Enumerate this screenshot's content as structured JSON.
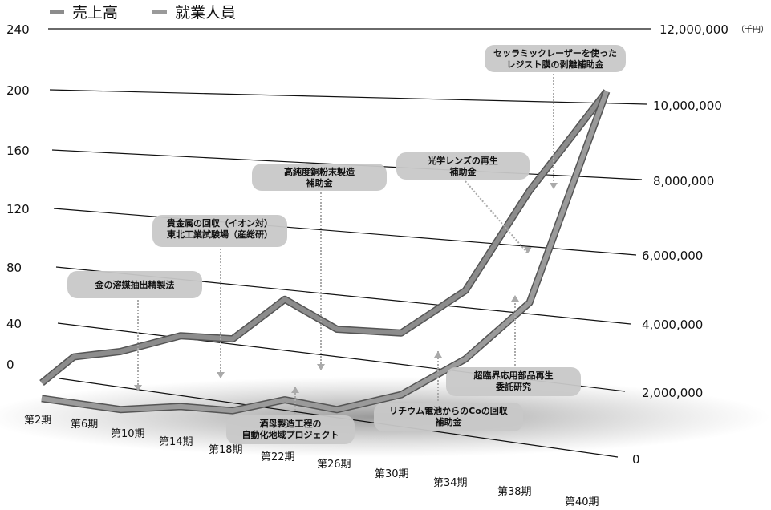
{
  "chart_data": {
    "type": "line",
    "legend": [
      "売上高",
      "就業人員"
    ],
    "categories": [
      "第2期",
      "第6期",
      "第10期",
      "第14期",
      "第18期",
      "第22期",
      "第26期",
      "第30期",
      "第34期",
      "第38期",
      "第40期"
    ],
    "series": [
      {
        "name": "売上高",
        "axis": "right",
        "values": [
          100000,
          1200000,
          1600000,
          2400000,
          2500000,
          4000000,
          3200000,
          3300000,
          4800000,
          7800000,
          10000000
        ],
        "color": "#8c8c8c"
      },
      {
        "name": "就業人員",
        "axis": "left",
        "values": [
          0,
          0,
          0,
          8,
          10,
          22,
          20,
          35,
          62,
          100,
          200
        ],
        "color": "#9a9a9a"
      }
    ],
    "y_left": {
      "range": [
        0,
        240
      ],
      "ticks": [
        "240",
        "200",
        "160",
        "120",
        "80",
        "40",
        "0"
      ]
    },
    "y_right": {
      "range": [
        0,
        12000000
      ],
      "ticks": [
        "12,000,000",
        "10,000,000",
        "8,000,000",
        "6,000,000",
        "4,000,000",
        "2,000,000",
        "0"
      ],
      "unit": "（千円）"
    },
    "annotations": [
      {
        "text": [
          "金の溶媒抽出精製法"
        ],
        "category": "第10期"
      },
      {
        "text": [
          "貴金属の回収（イオン対）",
          "東北工業試験場（産総研）"
        ],
        "category": "第18期"
      },
      {
        "text": [
          "高純度銅粉末製造",
          "補助金"
        ],
        "category": "第26期"
      },
      {
        "text": [
          "光学レンズの再生",
          "補助金"
        ],
        "category": "第38期"
      },
      {
        "text": [
          "セッラミックレーザーを使った",
          "レジスト膜の剥離補助金"
        ],
        "category": "第40期"
      },
      {
        "text": [
          "酒母製造工程の",
          "自動化地域プロジェクト"
        ],
        "category": "第22期"
      },
      {
        "text": [
          "リチウム電池からのCoの回収",
          "補助金"
        ],
        "category": "第34期"
      },
      {
        "text": [
          "超臨界応用部品再生",
          "委託研究"
        ],
        "category": "第38期"
      }
    ]
  }
}
